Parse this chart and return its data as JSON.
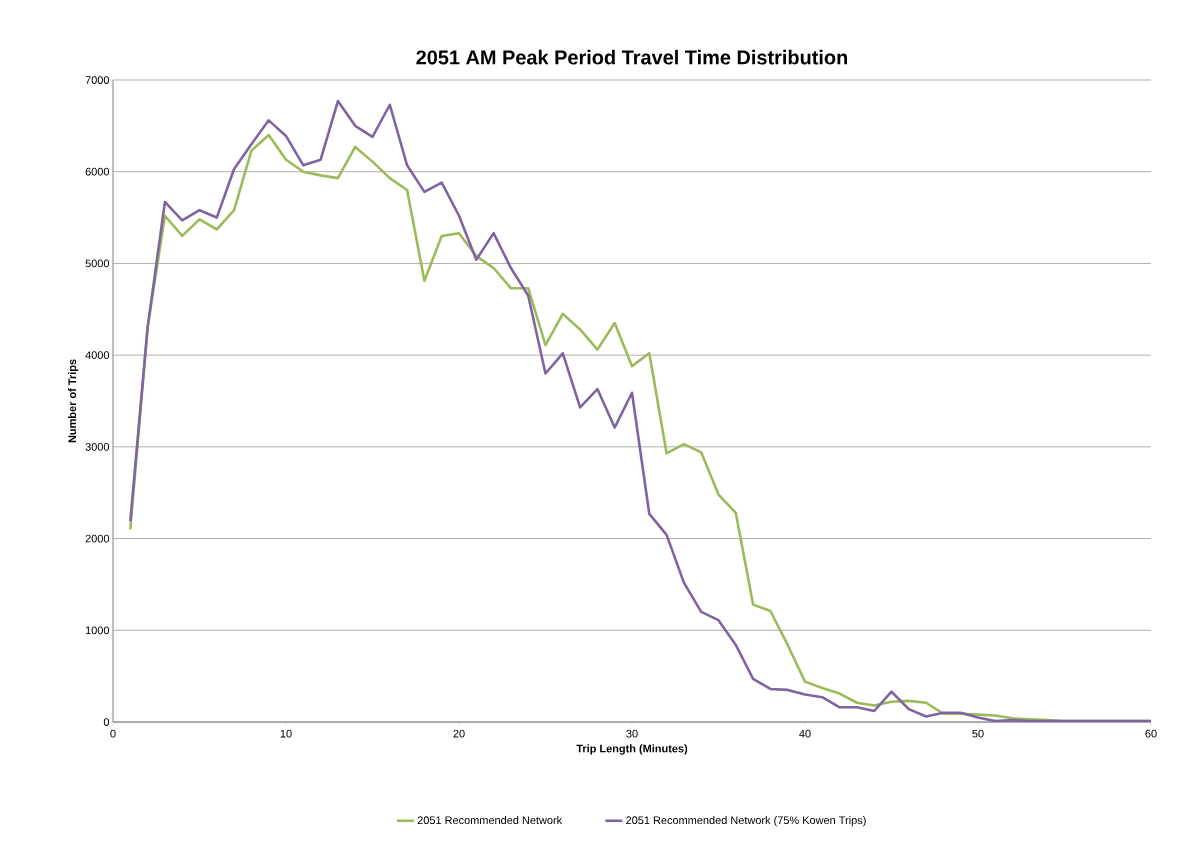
{
  "chart_data": {
    "type": "line",
    "title": "2051 AM Peak Period Travel Time Distribution",
    "xlabel": "Trip Length (Minutes)",
    "ylabel": "Number of Trips",
    "x": [
      1,
      2,
      3,
      4,
      5,
      6,
      7,
      8,
      9,
      10,
      11,
      12,
      13,
      14,
      15,
      16,
      17,
      18,
      19,
      20,
      21,
      22,
      23,
      24,
      25,
      26,
      27,
      28,
      29,
      30,
      31,
      32,
      33,
      34,
      35,
      36,
      37,
      38,
      39,
      40,
      41,
      42,
      43,
      44,
      45,
      46,
      47,
      48,
      49,
      50,
      51,
      52,
      53,
      54,
      55,
      56,
      57,
      58,
      59,
      60
    ],
    "series": [
      {
        "name": "2051 Recommended Network",
        "color": "#9bbb59",
        "values": [
          2100,
          4300,
          5520,
          5300,
          5480,
          5370,
          5580,
          6230,
          6400,
          6130,
          6000,
          5960,
          5930,
          6270,
          6110,
          5930,
          5800,
          4810,
          5300,
          5330,
          5080,
          4950,
          4730,
          4730,
          4110,
          4450,
          4280,
          4060,
          4350,
          3880,
          4020,
          2930,
          3030,
          2940,
          2480,
          2280,
          1280,
          1210,
          840,
          440,
          370,
          310,
          210,
          180,
          220,
          230,
          210,
          90,
          90,
          80,
          70,
          40,
          30,
          20,
          10,
          10,
          10,
          10,
          10,
          10
        ]
      },
      {
        "name": "2051 Recommended Network (75% Kowen Trips)",
        "color": "#8064a2",
        "values": [
          2190,
          4300,
          5670,
          5470,
          5580,
          5500,
          6030,
          6300,
          6560,
          6390,
          6070,
          6130,
          6770,
          6500,
          6380,
          6730,
          6070,
          5780,
          5880,
          5520,
          5040,
          5330,
          4950,
          4650,
          3800,
          4020,
          3430,
          3630,
          3210,
          3590,
          2270,
          2040,
          1520,
          1200,
          1110,
          840,
          470,
          360,
          350,
          300,
          270,
          160,
          160,
          120,
          330,
          140,
          60,
          100,
          100,
          50,
          10,
          20,
          10,
          10,
          10,
          10,
          10,
          10,
          10,
          10
        ]
      }
    ],
    "xlim": [
      0,
      60
    ],
    "xticks": [
      0,
      10,
      20,
      30,
      40,
      50,
      60
    ],
    "ylim": [
      0,
      7000
    ],
    "yticks": [
      0,
      1000,
      2000,
      3000,
      4000,
      5000,
      6000,
      7000
    ],
    "grid": "y",
    "legend": "bottom",
    "marker": "none",
    "line_style": "solid"
  }
}
